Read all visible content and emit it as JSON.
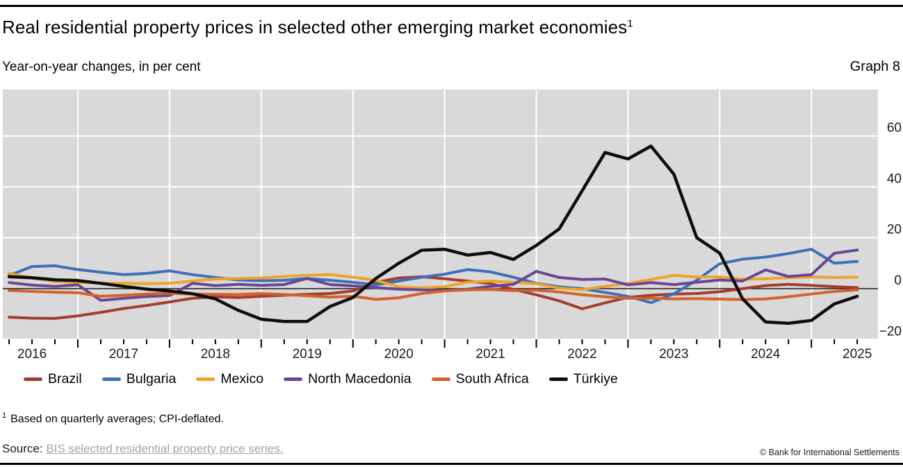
{
  "header": {
    "title": "Real residential property prices in selected other emerging market economies",
    "title_superscript": "1",
    "subtitle": "Year-on-year changes, in per cent",
    "graph_label": "Graph 8"
  },
  "chart_data": {
    "type": "line",
    "x_unit": "quarterly",
    "grid": true,
    "legend_position": "bottom",
    "plot_bg": "#d9d9d9",
    "gridline_color": "#ffffff",
    "zero_line_color": "#1a1a1a",
    "ylim": [
      -20,
      78
    ],
    "y_ticks": [
      -20,
      0,
      20,
      40,
      60
    ],
    "x_year_labels": [
      "2016",
      "2017",
      "2018",
      "2019",
      "2020",
      "2021",
      "2022",
      "2023",
      "2024",
      "2025"
    ],
    "quarters": [
      "2016-Q1",
      "2016-Q2",
      "2016-Q3",
      "2016-Q4",
      "2017-Q1",
      "2017-Q2",
      "2017-Q3",
      "2017-Q4",
      "2018-Q1",
      "2018-Q2",
      "2018-Q3",
      "2018-Q4",
      "2019-Q1",
      "2019-Q2",
      "2019-Q3",
      "2019-Q4",
      "2020-Q1",
      "2020-Q2",
      "2020-Q3",
      "2020-Q4",
      "2021-Q1",
      "2021-Q2",
      "2021-Q3",
      "2021-Q4",
      "2022-Q1",
      "2022-Q2",
      "2022-Q3",
      "2022-Q4",
      "2023-Q1",
      "2023-Q2",
      "2023-Q3",
      "2023-Q4",
      "2024-Q1",
      "2024-Q2",
      "2024-Q3",
      "2024-Q4",
      "2025-Q1",
      "2025-Q2"
    ],
    "series": [
      {
        "name": "Brazil",
        "color": "#a33c32",
        "values": [
          -11.2,
          -11.6,
          -11.7,
          -10.7,
          -9.3,
          -7.8,
          -6.6,
          -5.2,
          -3.8,
          -3.2,
          -3.5,
          -3.0,
          -2.6,
          -2.2,
          -1.9,
          -0.9,
          2.5,
          4.2,
          4.7,
          3.9,
          3.0,
          2.0,
          -0.3,
          -2.4,
          -4.8,
          -7.9,
          -5.6,
          -3.4,
          -2.6,
          -2.1,
          -1.9,
          -1.2,
          0.0,
          1.2,
          1.7,
          1.3,
          0.8,
          0.4
        ]
      },
      {
        "name": "Bulgaria",
        "color": "#3e70b6",
        "values": [
          5.2,
          8.7,
          9.0,
          7.5,
          6.5,
          5.5,
          6.0,
          7.0,
          5.5,
          4.4,
          3.4,
          3.1,
          3.3,
          4.0,
          3.3,
          2.5,
          1.5,
          3.0,
          4.5,
          5.7,
          7.5,
          6.6,
          4.5,
          2.1,
          0.7,
          0.0,
          -1.5,
          -3.0,
          -5.5,
          -2.0,
          3.3,
          9.8,
          11.6,
          12.4,
          13.8,
          15.5,
          10.0,
          10.7
        ]
      },
      {
        "name": "Mexico",
        "color": "#eca42d",
        "values": [
          6.0,
          4.2,
          2.8,
          2.4,
          2.2,
          2.1,
          2.0,
          2.1,
          3.0,
          3.8,
          4.0,
          4.2,
          4.8,
          5.3,
          5.5,
          4.5,
          3.3,
          0.7,
          0.3,
          0.8,
          2.5,
          3.0,
          2.5,
          1.9,
          0.2,
          -0.4,
          0.9,
          2.1,
          3.6,
          5.2,
          4.6,
          4.6,
          3.7,
          3.9,
          4.3,
          4.6,
          4.4,
          4.5
        ]
      },
      {
        "name": "North Macedonia",
        "color": "#6a4596",
        "values": [
          2.4,
          1.4,
          0.9,
          1.5,
          -4.6,
          -3.8,
          -3.1,
          -2.7,
          2.1,
          1.2,
          1.7,
          1.3,
          1.6,
          4.0,
          1.6,
          1.1,
          0.4,
          -0.2,
          -0.5,
          -0.7,
          -0.2,
          0.9,
          1.7,
          6.8,
          4.4,
          3.6,
          3.8,
          1.5,
          2.4,
          1.6,
          2.5,
          3.4,
          3.0,
          7.4,
          4.8,
          5.5,
          13.9,
          15.2
        ]
      },
      {
        "name": "South Africa",
        "color": "#d4622b",
        "values": [
          -0.7,
          -1.1,
          -1.4,
          -1.6,
          -3.0,
          -2.6,
          -2.1,
          -1.8,
          -2.1,
          -2.2,
          -2.3,
          -1.9,
          -2.3,
          -2.8,
          -3.3,
          -3.0,
          -4.2,
          -3.6,
          -1.9,
          -0.9,
          -0.5,
          -0.3,
          -0.8,
          -0.6,
          -1.3,
          -2.4,
          -3.2,
          -3.8,
          -3.7,
          -4.0,
          -3.9,
          -4.1,
          -4.3,
          -4.0,
          -3.2,
          -2.1,
          -1.1,
          -0.5
        ]
      },
      {
        "name": "Türkiye",
        "color": "#0d0d0d",
        "values": [
          4.7,
          4.3,
          3.5,
          3.2,
          2.1,
          0.9,
          -0.2,
          -0.9,
          -2.0,
          -4.0,
          -8.5,
          -12.0,
          -12.9,
          -12.9,
          -7.0,
          -3.5,
          4.0,
          10.0,
          15.1,
          15.5,
          13.2,
          14.2,
          11.5,
          17.0,
          23.5,
          38.5,
          53.5,
          51.0,
          56.0,
          45.0,
          20.0,
          14.0,
          -4.0,
          -13.1,
          -13.6,
          -12.5,
          -6.0,
          -3.0
        ]
      }
    ]
  },
  "footnote": {
    "marker": "1",
    "text": "Based on quarterly averages; CPI-deflated."
  },
  "source": {
    "label": "Source:",
    "link_text": "BIS selected residential property price series."
  },
  "copyright": "© Bank for International Settlements"
}
